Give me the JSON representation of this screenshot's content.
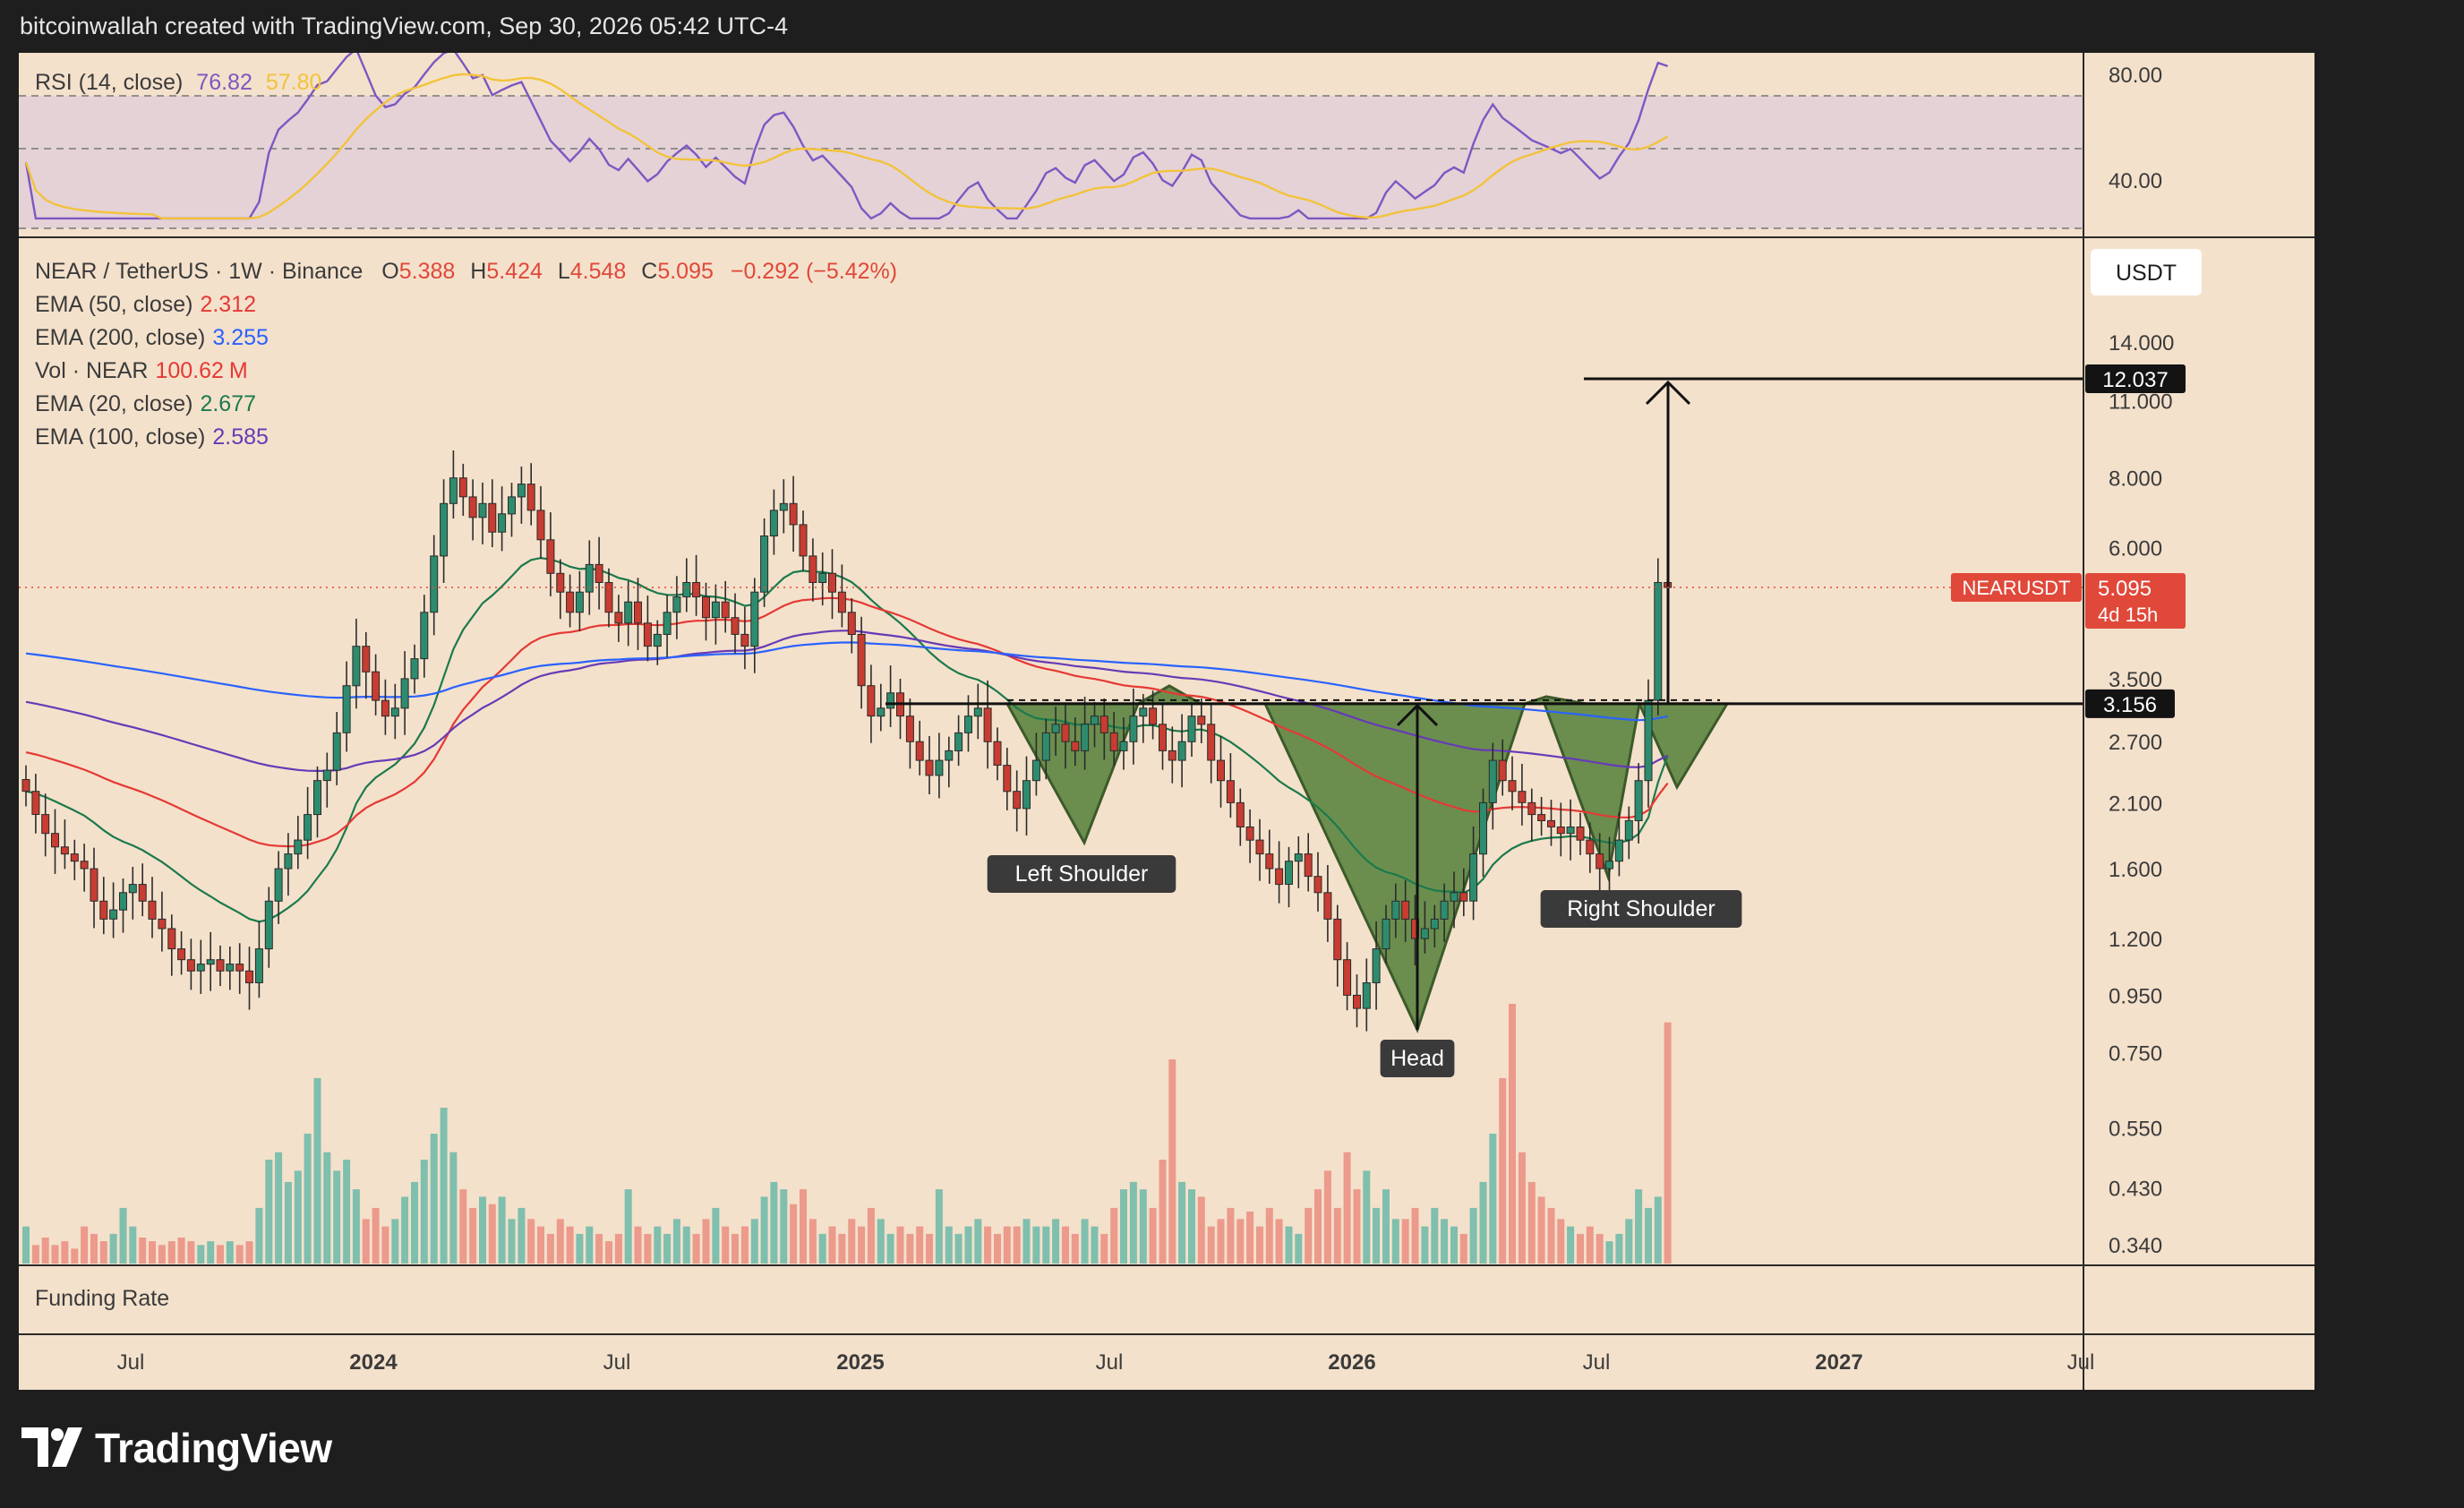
{
  "header": {
    "caption": "bitcoinwallah created with TradingView.com, Sep 30, 2026 05:42 UTC-4"
  },
  "brand": {
    "name": "TradingView",
    "logo_icon": "tradingview-logo-icon"
  },
  "rsi_panel": {
    "label": "RSI (14, close)",
    "value": "76.82",
    "ma_value": "57.80",
    "ticks": [
      "80.00",
      "40.00"
    ],
    "colors": {
      "rsi": "#7e57c2",
      "ma": "#f2c33b",
      "band": "#e0cfd9"
    }
  },
  "main_panel": {
    "symbol_line": "NEAR / TetherUS · 1W · Binance",
    "ohlc": {
      "o_label": "O",
      "o": "5.388",
      "h_label": "H",
      "h": "5.424",
      "l_label": "L",
      "l": "4.548",
      "c_label": "C",
      "c": "5.095",
      "change": "−0.292 (−5.42%)"
    },
    "indicators": [
      {
        "label": "EMA (50, close)",
        "value": "2.312",
        "color": "#e53935"
      },
      {
        "label": "EMA (200, close)",
        "value": "3.255",
        "color": "#2962ff"
      },
      {
        "label": "Vol · NEAR",
        "value": "100.62",
        "unit": "M",
        "color": "#e53935"
      },
      {
        "label": "EMA (20, close)",
        "value": "2.677",
        "color": "#1b7a4c"
      },
      {
        "label": "EMA (100, close)",
        "value": "2.585",
        "color": "#673ab7"
      }
    ],
    "currency_button": "USDT",
    "price_ticks": [
      "14.000",
      "11.000",
      "8.000",
      "6.000",
      "3.500",
      "2.700",
      "2.100",
      "1.600",
      "1.200",
      "0.950",
      "0.750",
      "0.550",
      "0.430",
      "0.340"
    ],
    "target_label": "12.037",
    "neckline_label": "3.156",
    "price_tag": {
      "symbol": "NEARUSDT",
      "price": "5.095",
      "countdown": "4d 15h",
      "color": "#e0483a"
    },
    "annotations": {
      "left_shoulder": "Left Shoulder",
      "head": "Head",
      "right_shoulder": "Right Shoulder"
    },
    "colors": {
      "up": "#26a69a",
      "down": "#ef5350",
      "pattern_fill": "#6b8e4e"
    }
  },
  "funding_panel": {
    "label": "Funding Rate"
  },
  "time_axis": {
    "labels": [
      "Jul",
      "2024",
      "Jul",
      "2025",
      "Jul",
      "2026",
      "Jul",
      "2027",
      "Jul"
    ],
    "bold": [
      "2024",
      "2025",
      "2026",
      "2027"
    ]
  },
  "chart_data": {
    "type": "candlestick",
    "title": "NEAR / TetherUS · 1W · Binance",
    "scale": "log",
    "ylim": [
      0.3,
      16
    ],
    "x_range": [
      "2023-05",
      "2027-09"
    ],
    "pattern": "inverse head and shoulders",
    "neckline": 3.156,
    "target": 12.037,
    "last_close": 5.095,
    "closes": [
      2.2,
      2.0,
      1.85,
      1.75,
      1.7,
      1.65,
      1.6,
      1.4,
      1.3,
      1.35,
      1.45,
      1.5,
      1.4,
      1.3,
      1.25,
      1.15,
      1.1,
      1.05,
      1.08,
      1.1,
      1.05,
      1.08,
      1.05,
      1.0,
      1.15,
      1.4,
      1.6,
      1.7,
      1.8,
      2.0,
      2.3,
      2.4,
      2.8,
      3.4,
      4.0,
      3.6,
      3.2,
      3.0,
      3.1,
      3.5,
      3.8,
      4.6,
      5.8,
      7.2,
      8.0,
      7.4,
      6.8,
      7.2,
      6.4,
      6.9,
      7.4,
      7.8,
      7.0,
      6.2,
      5.4,
      5.0,
      4.6,
      5.0,
      5.6,
      5.2,
      4.6,
      4.4,
      4.8,
      4.4,
      4.0,
      4.2,
      4.6,
      4.9,
      5.2,
      4.9,
      4.5,
      4.8,
      4.5,
      4.2,
      4.0,
      5.0,
      6.3,
      7.0,
      7.2,
      6.6,
      5.8,
      5.2,
      5.4,
      5.0,
      4.6,
      4.2,
      3.4,
      3.0,
      3.1,
      3.3,
      3.0,
      2.7,
      2.5,
      2.35,
      2.5,
      2.6,
      2.8,
      3.0,
      3.1,
      2.7,
      2.45,
      2.2,
      2.05,
      2.3,
      2.5,
      2.8,
      2.9,
      2.7,
      2.6,
      2.9,
      3.0,
      2.8,
      2.6,
      2.7,
      3.0,
      3.1,
      2.9,
      2.6,
      2.5,
      2.7,
      3.0,
      2.9,
      2.5,
      2.3,
      2.1,
      1.9,
      1.8,
      1.7,
      1.6,
      1.5,
      1.65,
      1.7,
      1.55,
      1.45,
      1.3,
      1.1,
      0.95,
      0.9,
      1.0,
      1.15,
      1.3,
      1.4,
      1.3,
      1.2,
      1.25,
      1.3,
      1.4,
      1.45,
      1.4,
      1.7,
      2.1,
      2.5,
      2.3,
      2.2,
      2.1,
      2.0,
      1.95,
      1.9,
      1.85,
      1.9,
      1.8,
      1.7,
      1.6,
      1.65,
      1.8,
      1.95,
      2.3,
      3.2,
      5.2,
      5.095
    ],
    "volumes": [
      0.4,
      0.35,
      0.37,
      0.35,
      0.36,
      0.34,
      0.4,
      0.38,
      0.36,
      0.38,
      0.45,
      0.4,
      0.37,
      0.36,
      0.35,
      0.36,
      0.37,
      0.36,
      0.35,
      0.36,
      0.35,
      0.36,
      0.35,
      0.36,
      0.45,
      0.58,
      0.6,
      0.52,
      0.55,
      0.65,
      0.8,
      0.6,
      0.55,
      0.58,
      0.5,
      0.42,
      0.45,
      0.4,
      0.42,
      0.48,
      0.52,
      0.58,
      0.65,
      0.72,
      0.6,
      0.5,
      0.45,
      0.48,
      0.46,
      0.48,
      0.42,
      0.45,
      0.42,
      0.4,
      0.38,
      0.42,
      0.4,
      0.38,
      0.4,
      0.38,
      0.36,
      0.38,
      0.5,
      0.4,
      0.38,
      0.4,
      0.38,
      0.42,
      0.4,
      0.38,
      0.42,
      0.45,
      0.4,
      0.38,
      0.4,
      0.42,
      0.48,
      0.52,
      0.5,
      0.46,
      0.5,
      0.42,
      0.38,
      0.4,
      0.38,
      0.42,
      0.4,
      0.45,
      0.42,
      0.38,
      0.4,
      0.38,
      0.4,
      0.38,
      0.5,
      0.4,
      0.38,
      0.4,
      0.42,
      0.4,
      0.38,
      0.4,
      0.4,
      0.42,
      0.4,
      0.4,
      0.42,
      0.4,
      0.38,
      0.42,
      0.4,
      0.38,
      0.45,
      0.5,
      0.52,
      0.5,
      0.45,
      0.58,
      0.85,
      0.52,
      0.5,
      0.48,
      0.4,
      0.42,
      0.45,
      0.42,
      0.44,
      0.4,
      0.45,
      0.42,
      0.4,
      0.38,
      0.45,
      0.5,
      0.55,
      0.45,
      0.6,
      0.5,
      0.55,
      0.45,
      0.5,
      0.42,
      0.42,
      0.45,
      0.4,
      0.45,
      0.42,
      0.4,
      0.38,
      0.45,
      0.52,
      0.65,
      0.8,
      1.0,
      0.6,
      0.52,
      0.48,
      0.45,
      0.42,
      0.4,
      0.38,
      0.4,
      0.38,
      0.36,
      0.38,
      0.42,
      0.5,
      0.45,
      0.48,
      0.95,
      0.85,
      0.45
    ]
  }
}
